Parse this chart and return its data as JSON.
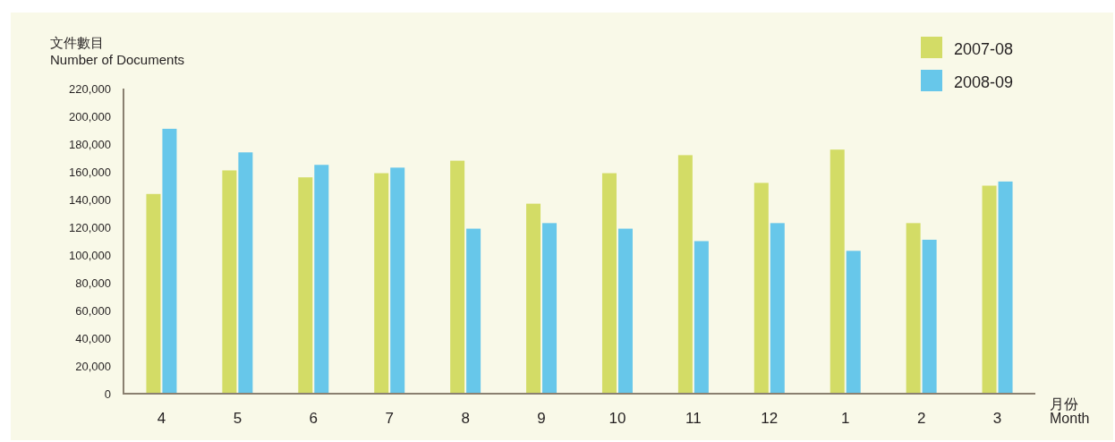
{
  "chart_data": {
    "type": "bar",
    "ylabel": "文件數目\nNumber of Documents",
    "xlabel": "月份\nMonth",
    "categories": [
      "4",
      "5",
      "6",
      "7",
      "8",
      "9",
      "10",
      "11",
      "12",
      "1",
      "2",
      "3"
    ],
    "series": [
      {
        "name": "2007-08",
        "color": "#d3dc66",
        "values": [
          144000,
          161000,
          156000,
          159000,
          168000,
          137000,
          159000,
          172000,
          152000,
          176000,
          123000,
          150000
        ]
      },
      {
        "name": "2008-09",
        "color": "#67c7ea",
        "values": [
          191000,
          174000,
          165000,
          163000,
          119000,
          123000,
          119000,
          110000,
          123000,
          103000,
          111000,
          153000
        ]
      }
    ],
    "ylim": [
      0,
      220000
    ],
    "yticks": [
      {
        "value": 0,
        "label": "0"
      },
      {
        "value": 20000,
        "label": "20,000"
      },
      {
        "value": 40000,
        "label": "40,000"
      },
      {
        "value": 60000,
        "label": "60,000"
      },
      {
        "value": 80000,
        "label": "80,000"
      },
      {
        "value": 100000,
        "label": "100,000"
      },
      {
        "value": 120000,
        "label": "120,000"
      },
      {
        "value": 140000,
        "label": "140,000"
      },
      {
        "value": 160000,
        "label": "160,000"
      },
      {
        "value": 180000,
        "label": "180,000"
      },
      {
        "value": 200000,
        "label": "200,000"
      },
      {
        "value": 220000,
        "label": "220,000"
      }
    ],
    "grid": false,
    "legend": "top right"
  }
}
